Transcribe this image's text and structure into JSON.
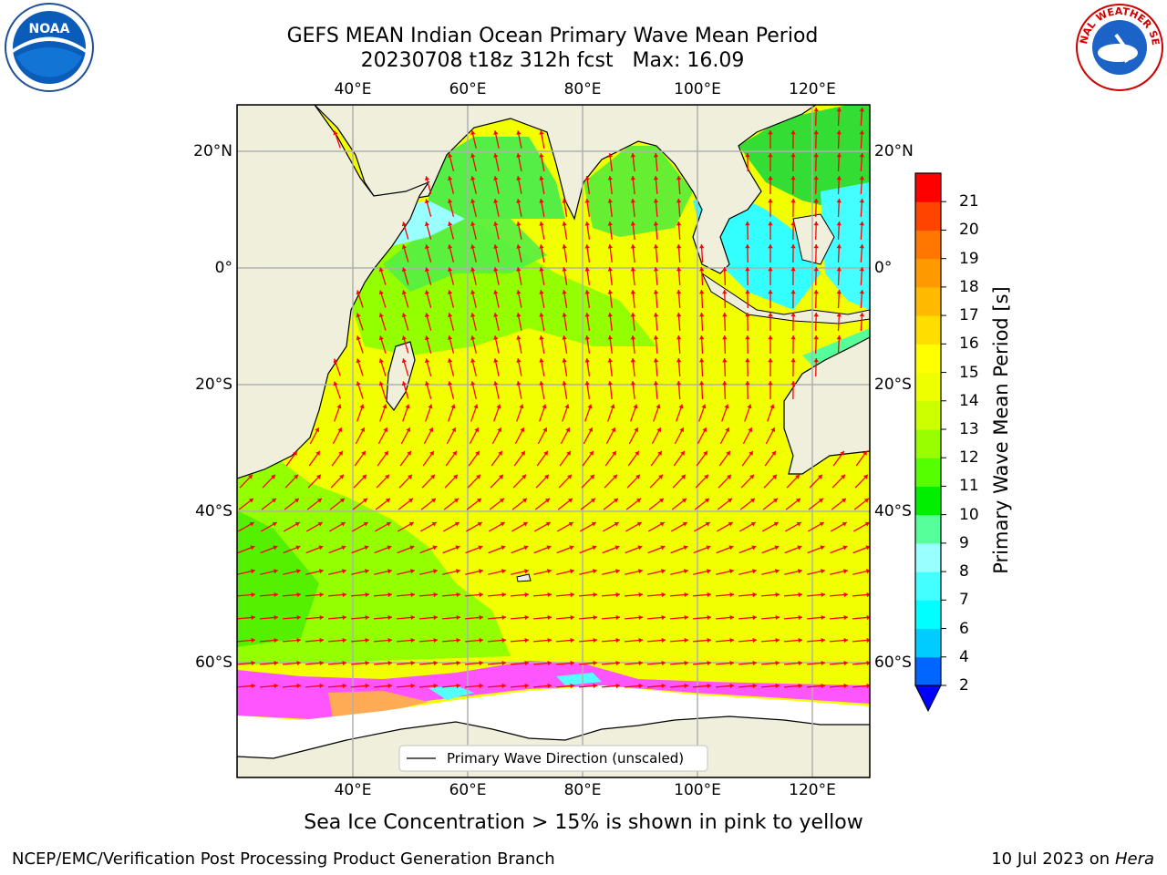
{
  "title": {
    "line1": "GEFS MEAN Indian Ocean Primary Wave Mean Period",
    "line2": "20230708 t18z 312h fcst   Max: 16.09"
  },
  "logos": {
    "left": {
      "text": "NOAA",
      "icon": "noaa-logo"
    },
    "right": {
      "text": "NATIONAL WEATHER SERVICE",
      "icon": "nws-logo"
    }
  },
  "map": {
    "longitude_ticks": [
      "40°E",
      "60°E",
      "80°E",
      "100°E",
      "120°E"
    ],
    "latitude_ticks": [
      "20°N",
      "0°",
      "20°S",
      "40°S",
      "60°S"
    ],
    "legend_label": "Primary Wave Direction (unscaled)",
    "arrow_color": "#ff0000",
    "land_color": "#efefdb",
    "ice_colors": [
      "#ff55ff",
      "#ffaa55",
      "#55ffff"
    ]
  },
  "colorbar": {
    "label": "Primary Wave Mean Period [s]",
    "ticks": [
      "2",
      "4",
      "6",
      "7",
      "8",
      "9",
      "10",
      "11",
      "12",
      "13",
      "14",
      "15",
      "16",
      "17",
      "18",
      "19",
      "20",
      "21"
    ],
    "colors": [
      "#0066ff",
      "#00ccff",
      "#00ffff",
      "#44ffff",
      "#99ffff",
      "#55ff99",
      "#00ee00",
      "#55ff00",
      "#99ff00",
      "#ccff00",
      "#eeff00",
      "#ffff00",
      "#ffdd00",
      "#ffbb00",
      "#ff9900",
      "#ff7700",
      "#ff4400",
      "#ff0000"
    ],
    "under_color": "#0000ff"
  },
  "caption": "Sea Ice Concentration > 15% is shown in pink to yellow",
  "footer": {
    "left": "NCEP/EMC/Verification Post Processing Product Generation Branch",
    "date": "10 Jul 2023 on ",
    "machine": "Hera"
  }
}
